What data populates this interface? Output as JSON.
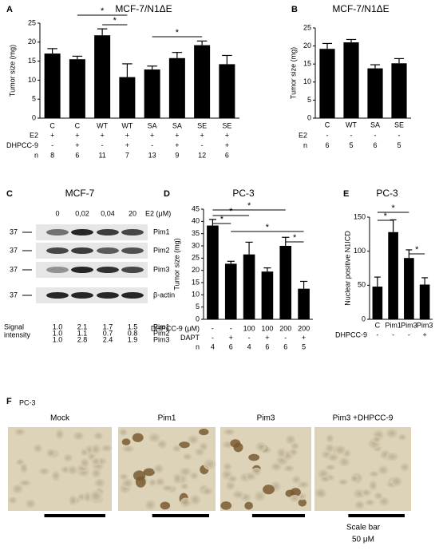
{
  "chart_data": [
    {
      "type": "bar",
      "panel": "A",
      "title": "MCF-7/N1ΔE",
      "y_label": "Tumor size (mg)",
      "categories": [
        "C",
        "C",
        "WT",
        "WT",
        "SA",
        "SA",
        "SE",
        "SE"
      ],
      "values": [
        17,
        15.5,
        21.8,
        10.8,
        12.8,
        15.8,
        19.2,
        14.2
      ],
      "errors": [
        1.3,
        0.8,
        1.7,
        3.5,
        0.9,
        1.5,
        1.1,
        2.3
      ],
      "ylim": [
        0,
        25
      ],
      "yticks": [
        0,
        5,
        10,
        15,
        20,
        25
      ],
      "color": "#000000",
      "rows": [
        {
          "name": "E2",
          "values": [
            "+",
            "+",
            "+",
            "+",
            "+",
            "+",
            "+",
            "+"
          ]
        },
        {
          "name": "DHPCC-9",
          "values": [
            "-",
            "+",
            "-",
            "+",
            "-",
            "+",
            "-",
            "+"
          ]
        },
        {
          "name": "n",
          "values": [
            "8",
            "6",
            "11",
            "7",
            "13",
            "9",
            "12",
            "6"
          ]
        }
      ],
      "annotations": [
        "*",
        "*",
        "*"
      ]
    },
    {
      "type": "bar",
      "panel": "B",
      "title": "MCF-7/N1ΔE",
      "y_label": "Tumor size (mg)",
      "categories": [
        "C",
        "WT",
        "SA",
        "SE"
      ],
      "values": [
        19.2,
        21,
        13.8,
        15.2
      ],
      "errors": [
        1.5,
        0.8,
        1,
        1.3
      ],
      "ylim": [
        0,
        25
      ],
      "yticks": [
        0,
        5,
        10,
        15,
        20,
        25
      ],
      "color": "#000000",
      "rows": [
        {
          "name": "E2",
          "values": [
            "-",
            "-",
            "-",
            "-"
          ]
        },
        {
          "name": "n",
          "values": [
            "6",
            "5",
            "6",
            "5"
          ]
        }
      ],
      "annotations": []
    },
    {
      "type": "bar",
      "panel": "D",
      "title": "PC-3",
      "y_label": "Tumor size (mg)",
      "categories": [
        null,
        null,
        null,
        null,
        null,
        null
      ],
      "values": [
        38.3,
        22.7,
        26.5,
        19.5,
        30,
        12.5
      ],
      "errors": [
        2.5,
        1,
        5,
        1.5,
        3.5,
        3
      ],
      "ylim": [
        0,
        45
      ],
      "yticks": [
        0,
        5,
        10,
        15,
        20,
        25,
        30,
        35,
        40,
        45
      ],
      "color": "#000000",
      "rows": [
        {
          "name": "DHPCC-9 (μM)",
          "values": [
            "-",
            "-",
            "100",
            "100",
            "200",
            "200"
          ]
        },
        {
          "name": "DAPT",
          "values": [
            "-",
            "+",
            "-",
            "+",
            "-",
            "+"
          ]
        },
        {
          "name": "n",
          "values": [
            "4",
            "6",
            "4",
            "6",
            "6",
            "5"
          ]
        }
      ],
      "annotations": [
        "*",
        "*",
        "*",
        "*",
        "*"
      ]
    },
    {
      "type": "bar",
      "panel": "E",
      "title": "PC-3",
      "y_label": "Nuclear positive N1ICD",
      "categories": [
        "C",
        "Pim1",
        "Pim3",
        "Pim3"
      ],
      "values": [
        48,
        128,
        90,
        51
      ],
      "errors": [
        14,
        18,
        12,
        10
      ],
      "ylim": [
        0,
        150
      ],
      "yticks": [
        0,
        50,
        100,
        150
      ],
      "color": "#000000",
      "rows": [
        {
          "name": "DHPCC-9",
          "values": [
            "-",
            "-",
            "-",
            "+"
          ]
        }
      ],
      "annotations": [
        "*",
        "*",
        "*"
      ]
    }
  ],
  "blot": {
    "panel": "C",
    "title": "MCF-7",
    "lanes": [
      "0",
      "0,02",
      "0,04",
      "20"
    ],
    "lane_unit": "E2 (μM)",
    "markers": [
      "37",
      "37",
      "37",
      "37"
    ],
    "bands": [
      "Pim1",
      "Pim2",
      "Pim3",
      "β-actin"
    ],
    "quant_label": [
      "Signal",
      "intensity"
    ],
    "quant": [
      {
        "name": "Pim1",
        "values": [
          "1.0",
          "2.1",
          "1.7",
          "1.5"
        ]
      },
      {
        "name": "Pim2",
        "values": [
          "1.0",
          "1.1",
          "0.7",
          "0.8"
        ]
      },
      {
        "name": "Pim3",
        "values": [
          "1.0",
          "2.8",
          "2.4",
          "1.9"
        ]
      }
    ]
  },
  "images": {
    "panel": "F",
    "title": "PC-3",
    "captions": [
      "Mock",
      "Pim1",
      "Pim3",
      "Pim3 +DHPCC-9"
    ],
    "scale_label": [
      "Scale bar",
      "50 μM"
    ]
  }
}
